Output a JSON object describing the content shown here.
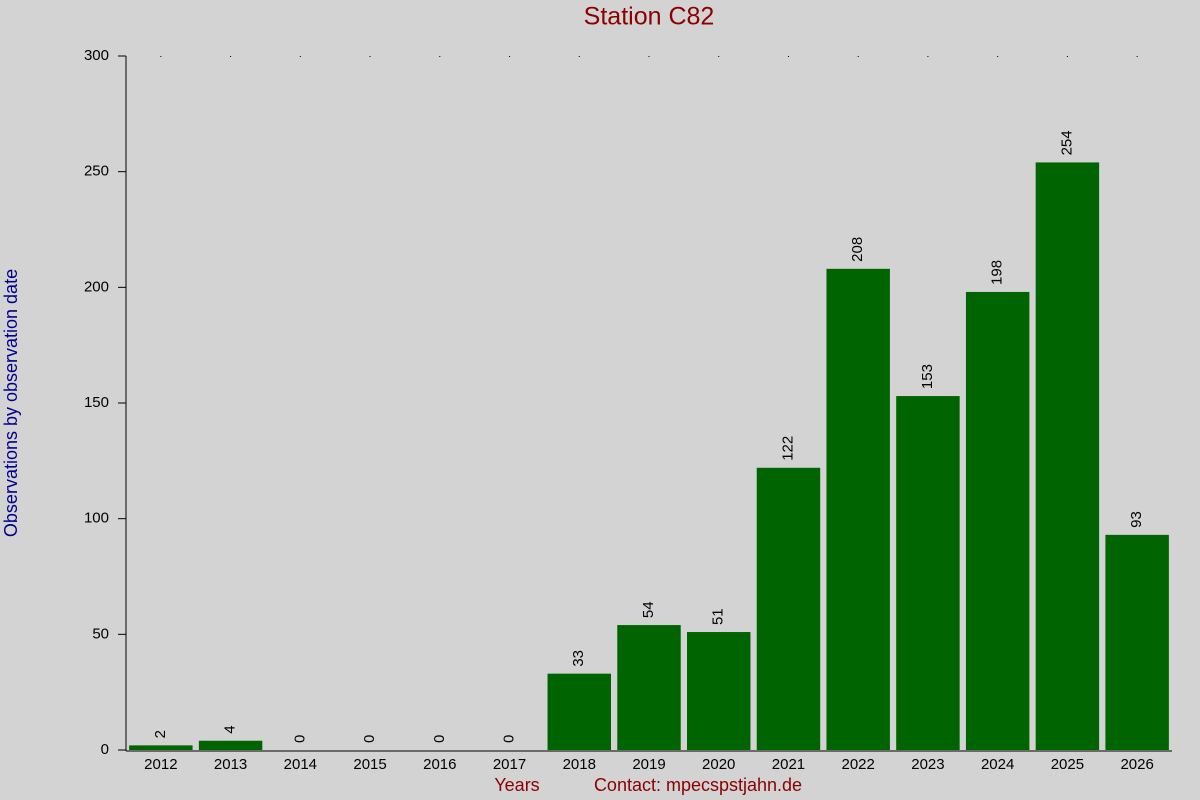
{
  "chart_data": {
    "type": "bar",
    "title": "Station C82",
    "y_label": "Observations by observation date",
    "x_label": "Years",
    "annotation": "Contact: mpecspstjahn.de",
    "categories": [
      "2012",
      "2013",
      "2014",
      "2015",
      "2016",
      "2017",
      "2018",
      "2019",
      "2020",
      "2021",
      "2022",
      "2023",
      "2024",
      "2025",
      "2026"
    ],
    "values": [
      2,
      4,
      0,
      0,
      0,
      0,
      33,
      54,
      51,
      122,
      208,
      153,
      198,
      254,
      93
    ],
    "color": "#006400",
    "ylim": [
      0,
      300
    ],
    "yticks": [
      0,
      50,
      100,
      150,
      200,
      250,
      300
    ]
  }
}
